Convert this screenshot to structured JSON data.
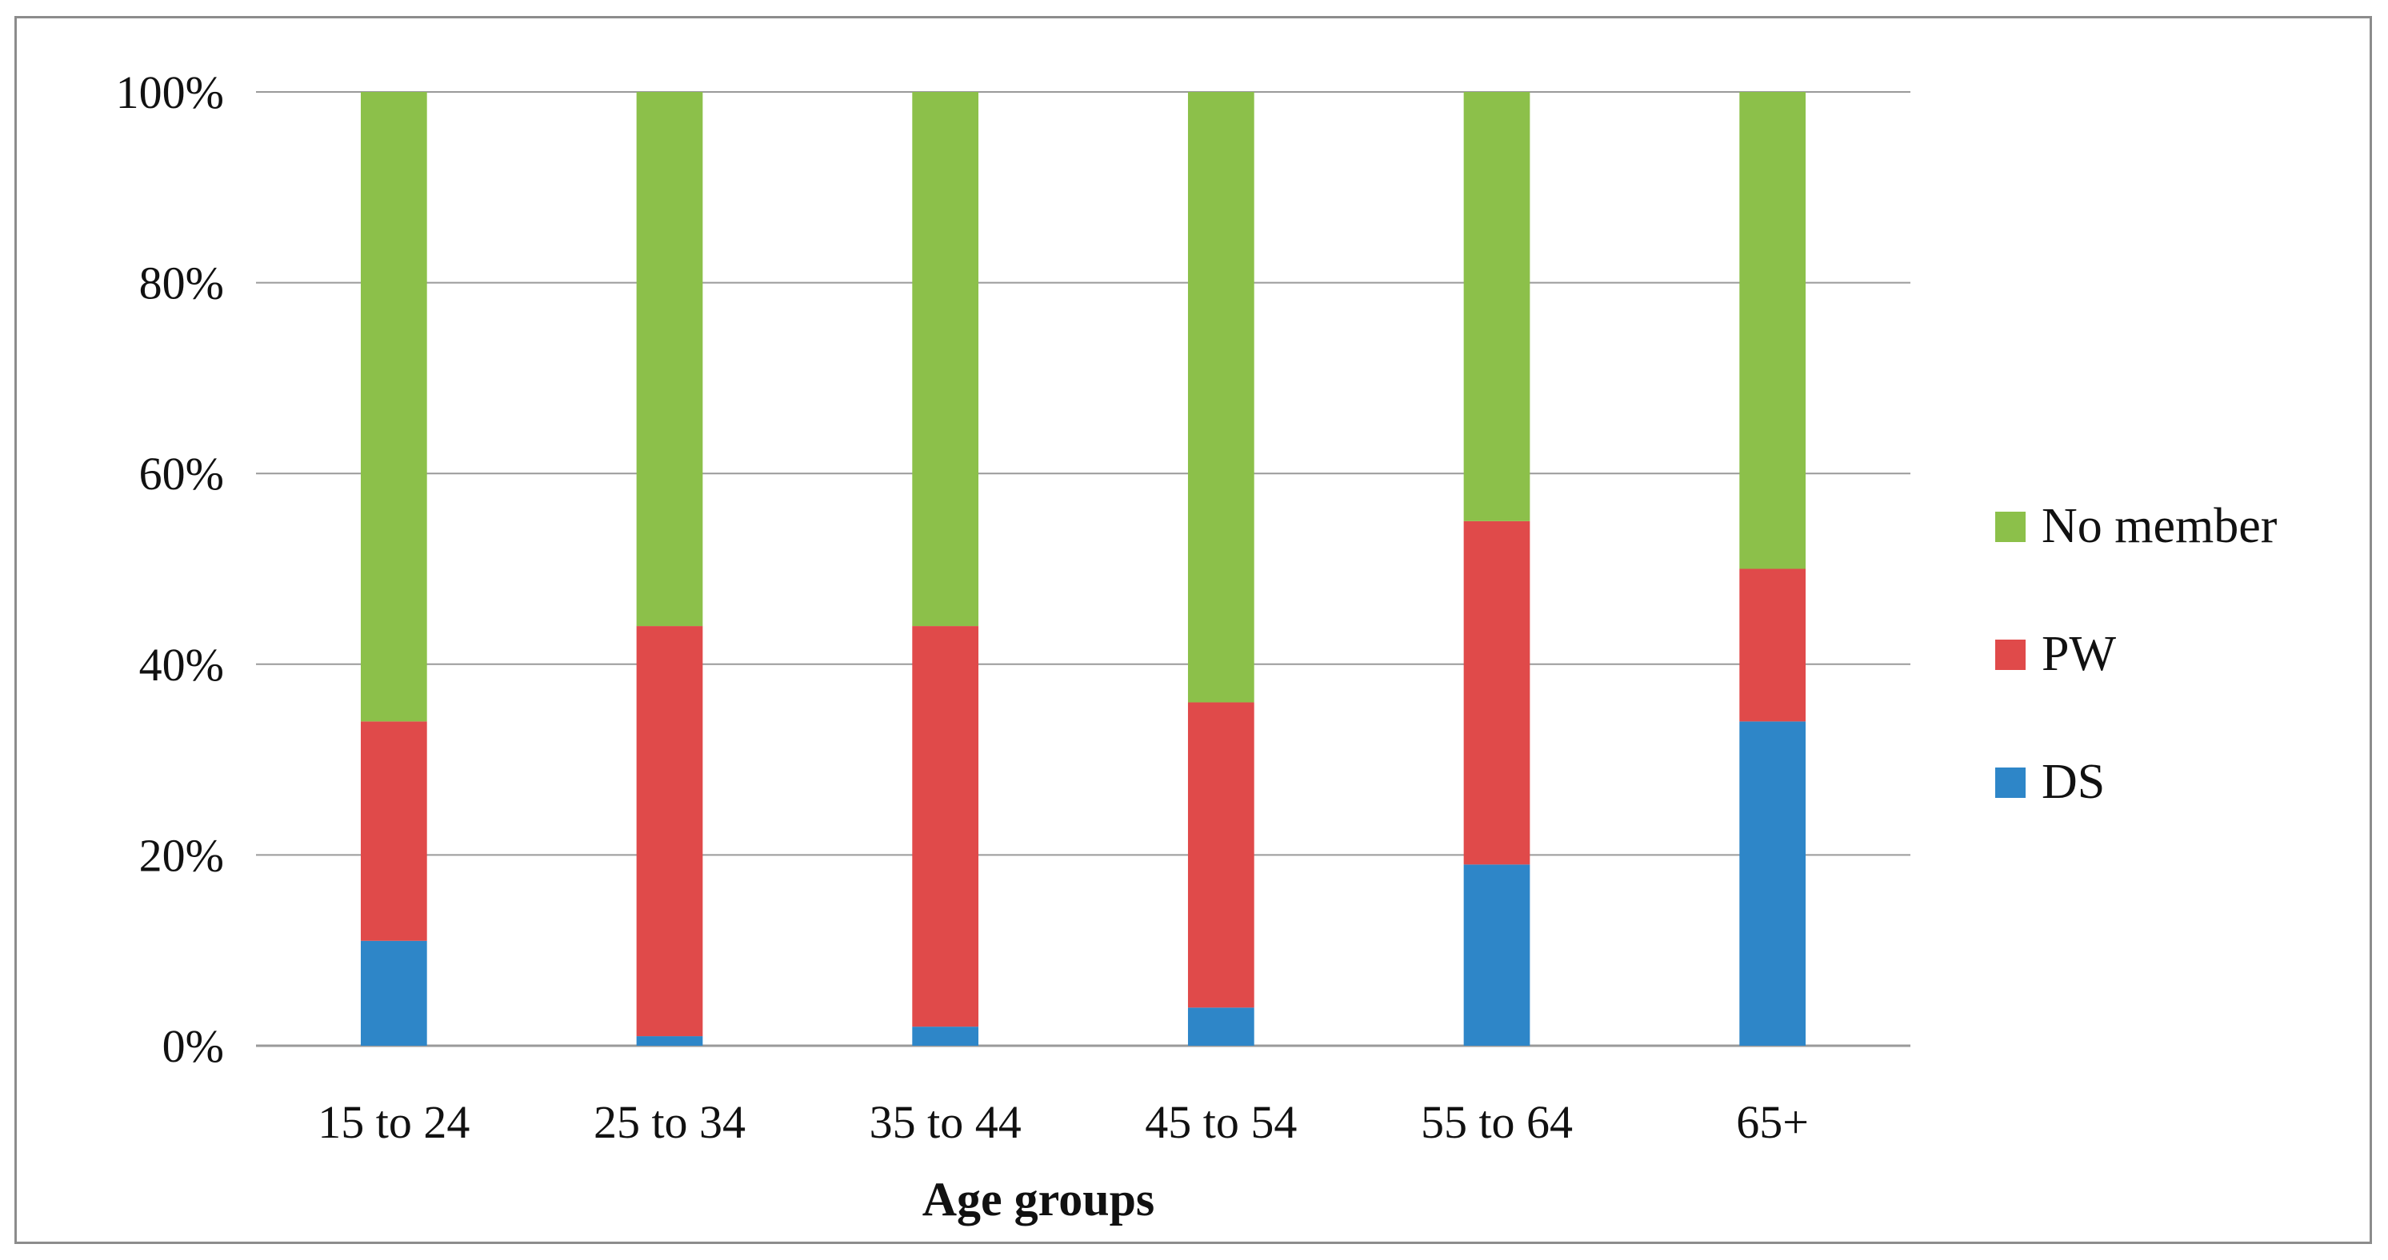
{
  "chart_data": {
    "type": "bar",
    "stacked": true,
    "categories": [
      "15 to 24",
      "25 to 34",
      "35 to 44",
      "45 to 54",
      "55 to 64",
      "65+"
    ],
    "series": [
      {
        "name": "DS",
        "color": "#2e86c8",
        "values": [
          11,
          1,
          2,
          4,
          19,
          34
        ]
      },
      {
        "name": "PW",
        "color": "#e04a4a",
        "values": [
          23,
          43,
          42,
          32,
          36,
          16
        ]
      },
      {
        "name": "No member",
        "color": "#8cc04a",
        "values": [
          66,
          56,
          56,
          64,
          45,
          50
        ]
      }
    ],
    "title": "",
    "xlabel": "Age groups",
    "ylabel": "",
    "ylim": [
      0,
      100
    ],
    "yticks": [
      "0%",
      "20%",
      "40%",
      "60%",
      "80%",
      "100%"
    ],
    "ytick_values": [
      0,
      20,
      40,
      60,
      80,
      100
    ],
    "grid": true,
    "legend_position": "right",
    "legend_order": [
      "No member",
      "PW",
      "DS"
    ]
  }
}
